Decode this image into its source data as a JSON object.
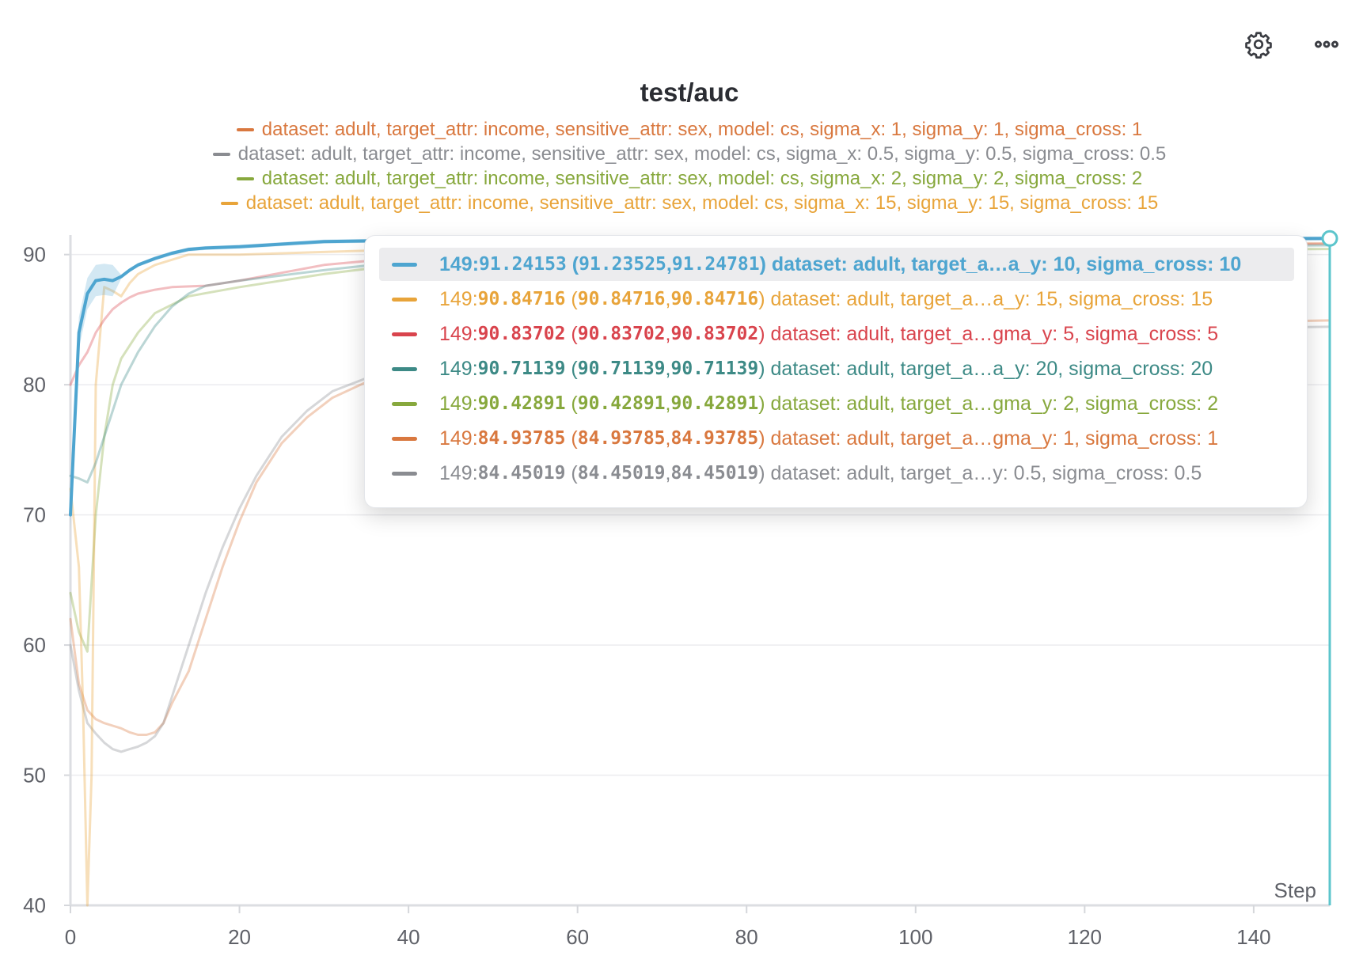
{
  "panel": {
    "title": "test/auc",
    "x_axis_label": "Step"
  },
  "toolbar": {
    "settings_icon": "gear-icon",
    "more_icon": "more-horizontal-icon"
  },
  "legend": [
    {
      "label": "dataset: adult, target_attr: income, sensitive_attr: sex, model: cs, sigma_x: 1, sigma_y: 1, sigma_cross: 1",
      "color": "#d9783f"
    },
    {
      "label": "dataset: adult, target_attr: income, sensitive_attr: sex, model: cs, sigma_x: 0.5, sigma_y: 0.5, sigma_cross: 0.5",
      "color": "#8a8c91"
    },
    {
      "label": "dataset: adult, target_attr: income, sensitive_attr: sex, model: cs, sigma_x: 2, sigma_y: 2, sigma_cross: 2",
      "color": "#87a83d"
    },
    {
      "label": "dataset: adult, target_attr: income, sensitive_attr: sex, model: cs, sigma_x: 15, sigma_y: 15, sigma_cross: 15",
      "color": "#e8a43a"
    }
  ],
  "tooltip": {
    "rows": [
      {
        "step": "149",
        "value": "91.24153",
        "min": "91.23525",
        "max": "91.24781",
        "label": "dataset: adult, target_a…a_y: 10, sigma_cross: 10",
        "color": "#4ea5d0",
        "highlighted": true
      },
      {
        "step": "149",
        "value": "90.84716",
        "min": "90.84716",
        "max": "90.84716",
        "label": "dataset: adult, target_a…a_y: 15, sigma_cross: 15",
        "color": "#e8a43a",
        "highlighted": false
      },
      {
        "step": "149",
        "value": "90.83702",
        "min": "90.83702",
        "max": "90.83702",
        "label": "dataset: adult, target_a…gma_y: 5, sigma_cross: 5",
        "color": "#d9444d",
        "highlighted": false
      },
      {
        "step": "149",
        "value": "90.71139",
        "min": "90.71139",
        "max": "90.71139",
        "label": "dataset: adult, target_a…a_y: 20, sigma_cross: 20",
        "color": "#3d8a86",
        "highlighted": false
      },
      {
        "step": "149",
        "value": "90.42891",
        "min": "90.42891",
        "max": "90.42891",
        "label": "dataset: adult, target_a…gma_y: 2, sigma_cross: 2",
        "color": "#87a83d",
        "highlighted": false
      },
      {
        "step": "149",
        "value": "84.93785",
        "min": "84.93785",
        "max": "84.93785",
        "label": "dataset: adult, target_a…gma_y: 1, sigma_cross: 1",
        "color": "#d9783f",
        "highlighted": false
      },
      {
        "step": "149",
        "value": "84.45019",
        "min": "84.45019",
        "max": "84.45019",
        "label": "dataset: adult, target_a…y: 0.5, sigma_cross: 0.5",
        "color": "#8a8c91",
        "highlighted": false
      }
    ]
  },
  "chart_data": {
    "type": "line",
    "title": "test/auc",
    "xlabel": "Step",
    "ylabel": "",
    "xlim": [
      0,
      149
    ],
    "ylim": [
      40,
      91.5
    ],
    "xticks": [
      0,
      20,
      40,
      60,
      80,
      100,
      120,
      140
    ],
    "yticks": [
      40,
      50,
      60,
      70,
      80,
      90
    ],
    "grid": true,
    "hover_step": 149,
    "series": [
      {
        "name": "sigma_cross: 1",
        "color": "#d9783f",
        "opacity": 0.35,
        "points": [
          [
            0,
            62
          ],
          [
            1,
            57
          ],
          [
            2,
            55
          ],
          [
            3,
            54.3
          ],
          [
            4,
            54
          ],
          [
            5,
            53.8
          ],
          [
            6,
            53.6
          ],
          [
            7,
            53.3
          ],
          [
            8,
            53.1
          ],
          [
            9,
            53.1
          ],
          [
            10,
            53.3
          ],
          [
            11,
            54
          ],
          [
            12,
            55.5
          ],
          [
            14,
            58
          ],
          [
            16,
            62
          ],
          [
            18,
            66
          ],
          [
            20,
            69.5
          ],
          [
            22,
            72.5
          ],
          [
            25,
            75.5
          ],
          [
            28,
            77.5
          ],
          [
            31,
            79
          ],
          [
            35,
            80.2
          ],
          [
            40,
            81
          ],
          [
            45,
            81.8
          ],
          [
            60,
            82.8
          ],
          [
            80,
            83.6
          ],
          [
            100,
            84.2
          ],
          [
            120,
            84.6
          ],
          [
            149,
            84.94
          ]
        ]
      },
      {
        "name": "sigma_cross: 0.5",
        "color": "#8a8c91",
        "opacity": 0.35,
        "points": [
          [
            0,
            60
          ],
          [
            1,
            56.5
          ],
          [
            2,
            54
          ],
          [
            3,
            53.2
          ],
          [
            4,
            52.5
          ],
          [
            5,
            52
          ],
          [
            6,
            51.8
          ],
          [
            7,
            52
          ],
          [
            8,
            52.2
          ],
          [
            9,
            52.5
          ],
          [
            10,
            53
          ],
          [
            11,
            54
          ],
          [
            12,
            56
          ],
          [
            14,
            60
          ],
          [
            16,
            64
          ],
          [
            18,
            67.5
          ],
          [
            20,
            70.5
          ],
          [
            22,
            73
          ],
          [
            25,
            76
          ],
          [
            28,
            78
          ],
          [
            31,
            79.5
          ],
          [
            35,
            80.5
          ],
          [
            40,
            81.2
          ],
          [
            45,
            81.8
          ],
          [
            60,
            82.6
          ],
          [
            80,
            83.3
          ],
          [
            100,
            83.8
          ],
          [
            120,
            84.2
          ],
          [
            149,
            84.45
          ]
        ]
      },
      {
        "name": "sigma_cross: 2",
        "color": "#87a83d",
        "opacity": 0.35,
        "points": [
          [
            0,
            64
          ],
          [
            1,
            61
          ],
          [
            2,
            59.5
          ],
          [
            3,
            70
          ],
          [
            4,
            76
          ],
          [
            5,
            80
          ],
          [
            6,
            82
          ],
          [
            8,
            84
          ],
          [
            10,
            85.5
          ],
          [
            14,
            86.8
          ],
          [
            20,
            87.5
          ],
          [
            30,
            88.5
          ],
          [
            40,
            89.3
          ],
          [
            60,
            89.8
          ],
          [
            80,
            90.1
          ],
          [
            100,
            90.2
          ],
          [
            120,
            90.3
          ],
          [
            149,
            90.43
          ]
        ]
      },
      {
        "name": "sigma_cross: 15",
        "color": "#e8a43a",
        "opacity": 0.35,
        "points": [
          [
            0,
            72
          ],
          [
            1,
            66
          ],
          [
            1.5,
            55
          ],
          [
            2,
            40
          ],
          [
            2.5,
            50
          ],
          [
            3,
            80
          ],
          [
            4,
            87.5
          ],
          [
            5,
            87.2
          ],
          [
            6,
            86.8
          ],
          [
            7,
            87.8
          ],
          [
            8,
            88.5
          ],
          [
            10,
            89.2
          ],
          [
            14,
            90
          ],
          [
            20,
            90
          ],
          [
            30,
            90.2
          ],
          [
            40,
            90.4
          ],
          [
            60,
            90.6
          ],
          [
            80,
            90.7
          ],
          [
            100,
            90.75
          ],
          [
            120,
            90.8
          ],
          [
            149,
            90.85
          ]
        ]
      },
      {
        "name": "sigma_cross: 5",
        "color": "#d9444d",
        "opacity": 0.35,
        "points": [
          [
            0,
            80
          ],
          [
            1,
            81.5
          ],
          [
            2,
            82.5
          ],
          [
            3,
            84
          ],
          [
            4,
            85
          ],
          [
            5,
            85.8
          ],
          [
            6,
            86.3
          ],
          [
            7,
            86.7
          ],
          [
            8,
            87
          ],
          [
            10,
            87.3
          ],
          [
            12,
            87.5
          ],
          [
            16,
            87.6
          ],
          [
            20,
            88
          ],
          [
            25,
            88.6
          ],
          [
            30,
            89.2
          ],
          [
            40,
            89.8
          ],
          [
            60,
            90.3
          ],
          [
            80,
            90.5
          ],
          [
            100,
            90.6
          ],
          [
            120,
            90.7
          ],
          [
            149,
            90.84
          ]
        ]
      },
      {
        "name": "sigma_cross: 20",
        "color": "#3d8a86",
        "opacity": 0.35,
        "points": [
          [
            0,
            73
          ],
          [
            1,
            72.8
          ],
          [
            2,
            72.5
          ],
          [
            3,
            74
          ],
          [
            4,
            76
          ],
          [
            5,
            78
          ],
          [
            6,
            80
          ],
          [
            8,
            82.5
          ],
          [
            10,
            84.5
          ],
          [
            12,
            86
          ],
          [
            14,
            87
          ],
          [
            16,
            87.6
          ],
          [
            20,
            88
          ],
          [
            30,
            88.8
          ],
          [
            40,
            89.5
          ],
          [
            60,
            90
          ],
          [
            80,
            90.3
          ],
          [
            100,
            90.5
          ],
          [
            120,
            90.6
          ],
          [
            149,
            90.71
          ]
        ]
      },
      {
        "name": "sigma_cross: 10",
        "color": "#4ea5d0",
        "opacity": 1,
        "band": true,
        "points": [
          [
            0,
            70
          ],
          [
            1,
            84
          ],
          [
            2,
            87
          ],
          [
            3,
            88
          ],
          [
            4,
            88.1
          ],
          [
            5,
            88
          ],
          [
            6,
            88.3
          ],
          [
            7,
            88.8
          ],
          [
            8,
            89.2
          ],
          [
            10,
            89.7
          ],
          [
            12,
            90.1
          ],
          [
            14,
            90.4
          ],
          [
            16,
            90.5
          ],
          [
            20,
            90.6
          ],
          [
            30,
            91
          ],
          [
            40,
            91.1
          ],
          [
            60,
            91.15
          ],
          [
            80,
            91.18
          ],
          [
            100,
            91.2
          ],
          [
            120,
            91.22
          ],
          [
            149,
            91.24
          ]
        ]
      }
    ]
  }
}
